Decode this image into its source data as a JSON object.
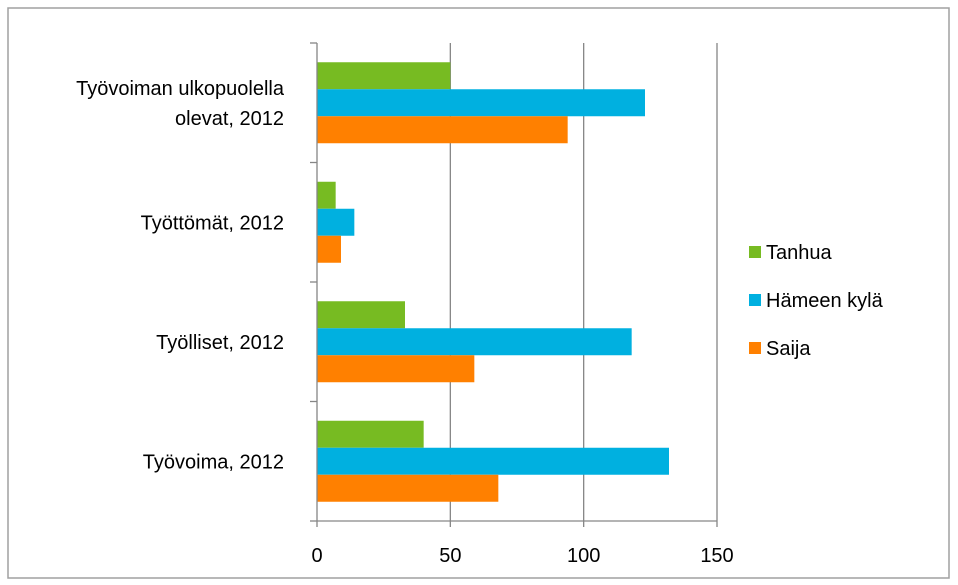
{
  "chart_data": {
    "type": "bar",
    "orientation": "horizontal",
    "categories": [
      [
        "Työvoiman ulkopuolella",
        "olevat, 2012"
      ],
      [
        "Työttömät, 2012"
      ],
      [
        "Työlliset, 2012"
      ],
      [
        "Työvoima, 2012"
      ]
    ],
    "series": [
      {
        "name": "Tanhua",
        "color": "#77bb22",
        "values": [
          50,
          7,
          33,
          40
        ]
      },
      {
        "name": "Hämeen kylä",
        "color": "#00b0e0",
        "values": [
          123,
          14,
          118,
          132
        ]
      },
      {
        "name": "Saija",
        "color": "#ff8000",
        "values": [
          94,
          9,
          59,
          68
        ]
      }
    ],
    "xlim": [
      0,
      150
    ],
    "xticks": [
      0,
      50,
      100,
      150
    ],
    "gridlines": true,
    "legend_position": "right",
    "title": "",
    "xlabel": "",
    "ylabel": ""
  }
}
